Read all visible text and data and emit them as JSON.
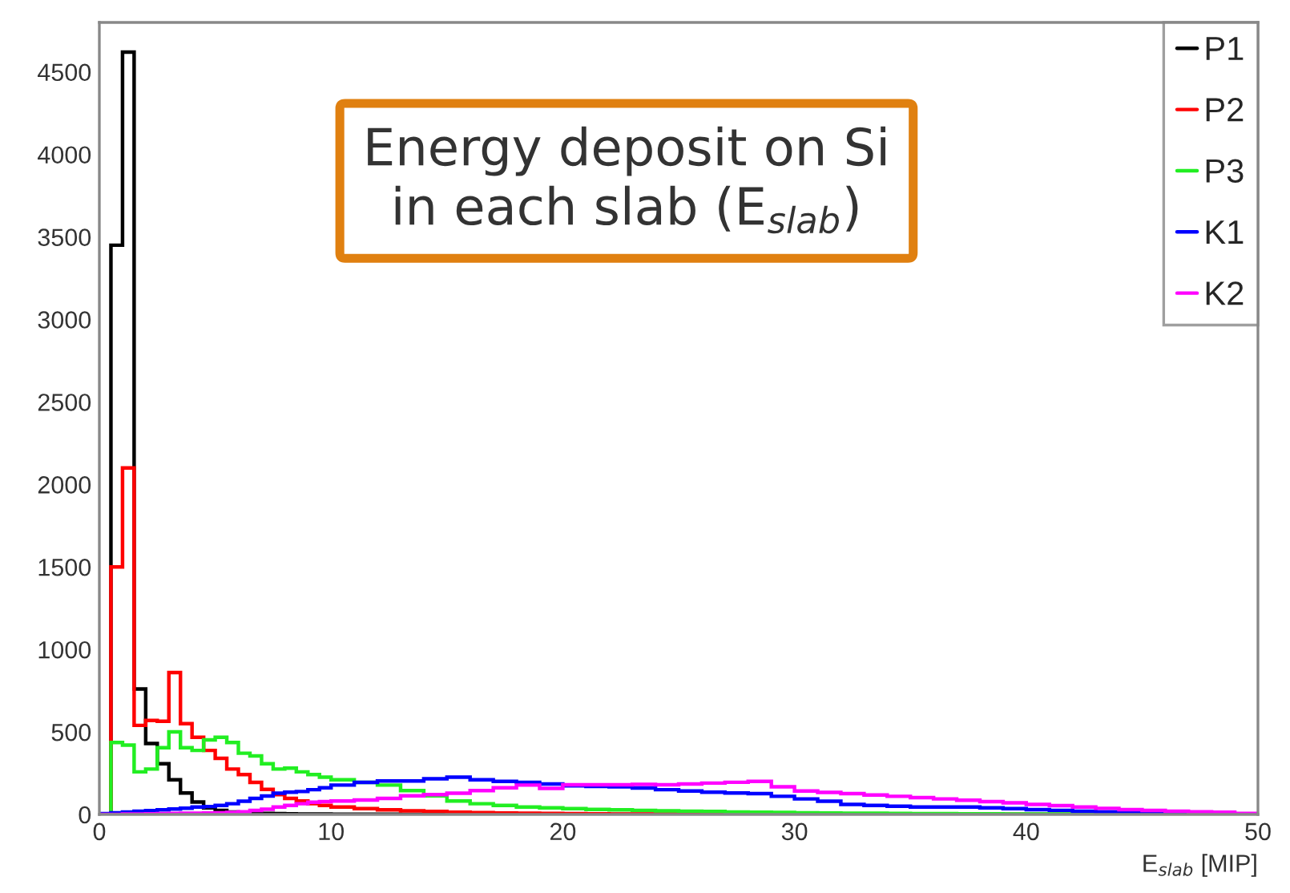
{
  "chart_data": {
    "type": "histogram",
    "xlabel": "E$_{slab}$ [MIP]",
    "annotations": [
      "Energy deposit on Si\nin each slab (E$_{slab}$)"
    ],
    "bins": [
      0,
      0.5,
      1,
      1.5,
      2,
      2.5,
      3,
      3.5,
      4,
      4.5,
      5,
      5.5,
      6,
      6.5,
      7,
      7.5,
      8,
      8.5,
      9,
      9.5,
      10,
      11,
      12,
      13,
      14,
      15,
      16,
      17,
      18,
      19,
      20,
      21,
      22,
      23,
      24,
      25,
      26,
      27,
      28,
      29,
      30,
      31,
      32,
      33,
      34,
      35,
      36,
      37,
      38,
      39,
      40,
      41,
      42,
      43,
      44,
      45,
      46,
      47,
      48,
      49,
      50
    ],
    "series": [
      {
        "name": "P1",
        "color": "#000000",
        "values": [
          0,
          3450,
          4620,
          760,
          430,
          307,
          210,
          130,
          75,
          40,
          25,
          15,
          10,
          8,
          6,
          5,
          4,
          3,
          2,
          2,
          1,
          1,
          1,
          0,
          0,
          0,
          0,
          0,
          0,
          0,
          0,
          0,
          0,
          0,
          0,
          0,
          0,
          0,
          0,
          0,
          0,
          0,
          0,
          0,
          0,
          0,
          0,
          0,
          0,
          0,
          0,
          0,
          0,
          0,
          0,
          0,
          0,
          0,
          0,
          0
        ]
      },
      {
        "name": "P2",
        "color": "#ff0000",
        "values": [
          0,
          1500,
          2100,
          540,
          570,
          565,
          860,
          550,
          468,
          388,
          340,
          275,
          242,
          194,
          152,
          120,
          97,
          81,
          65,
          55,
          45,
          35,
          28,
          22,
          18,
          14,
          11,
          9,
          7,
          6,
          5,
          4,
          3,
          3,
          2,
          2,
          2,
          1,
          1,
          1,
          1,
          1,
          1,
          0,
          0,
          0,
          0,
          0,
          0,
          0,
          0,
          0,
          0,
          0,
          0,
          0,
          0,
          0,
          0,
          0
        ]
      },
      {
        "name": "P3",
        "color": "#22ee22",
        "values": [
          0,
          436,
          420,
          258,
          275,
          404,
          500,
          404,
          388,
          452,
          468,
          436,
          371,
          355,
          307,
          275,
          281,
          258,
          242,
          226,
          210,
          194,
          178,
          145,
          113,
          81,
          65,
          55,
          45,
          40,
          35,
          30,
          28,
          25,
          22,
          20,
          18,
          15,
          13,
          12,
          10,
          9,
          8,
          7,
          6,
          5,
          5,
          4,
          4,
          3,
          3,
          3,
          2,
          2,
          2,
          1,
          1,
          1,
          1,
          1
        ]
      },
      {
        "name": "K1",
        "color": "#0000ff",
        "values": [
          5,
          10,
          15,
          20,
          23,
          28,
          33,
          38,
          45,
          48,
          55,
          65,
          80,
          97,
          112,
          129,
          135,
          139,
          150,
          162,
          178,
          194,
          203,
          203,
          216,
          226,
          210,
          200,
          194,
          185,
          174,
          170,
          168,
          160,
          150,
          142,
          135,
          130,
          126,
          110,
          94,
          80,
          61,
          55,
          50,
          45,
          45,
          45,
          40,
          35,
          29,
          25,
          19,
          16,
          13,
          10,
          8,
          6,
          4,
          3
        ]
      },
      {
        "name": "K2",
        "color": "#ff00ff",
        "values": [
          0,
          0,
          2,
          3,
          4,
          5,
          6,
          7,
          8,
          9,
          10,
          12,
          16,
          24,
          32,
          45,
          55,
          65,
          74,
          78,
          81,
          87,
          97,
          113,
          120,
          129,
          145,
          162,
          178,
          158,
          180,
          180,
          180,
          182,
          180,
          185,
          190,
          195,
          200,
          168,
          142,
          134,
          126,
          118,
          110,
          102,
          94,
          86,
          78,
          70,
          61,
          53,
          45,
          37,
          29,
          24,
          19,
          16,
          13,
          6
        ]
      }
    ],
    "xlim": [
      0,
      50
    ],
    "ylim": [
      0,
      4800
    ],
    "xticks": [
      0,
      10,
      20,
      30,
      40,
      50
    ],
    "yticks": [
      0,
      500,
      1000,
      1500,
      2000,
      2500,
      3000,
      3500,
      4000,
      4500
    ],
    "legend": "top right"
  }
}
